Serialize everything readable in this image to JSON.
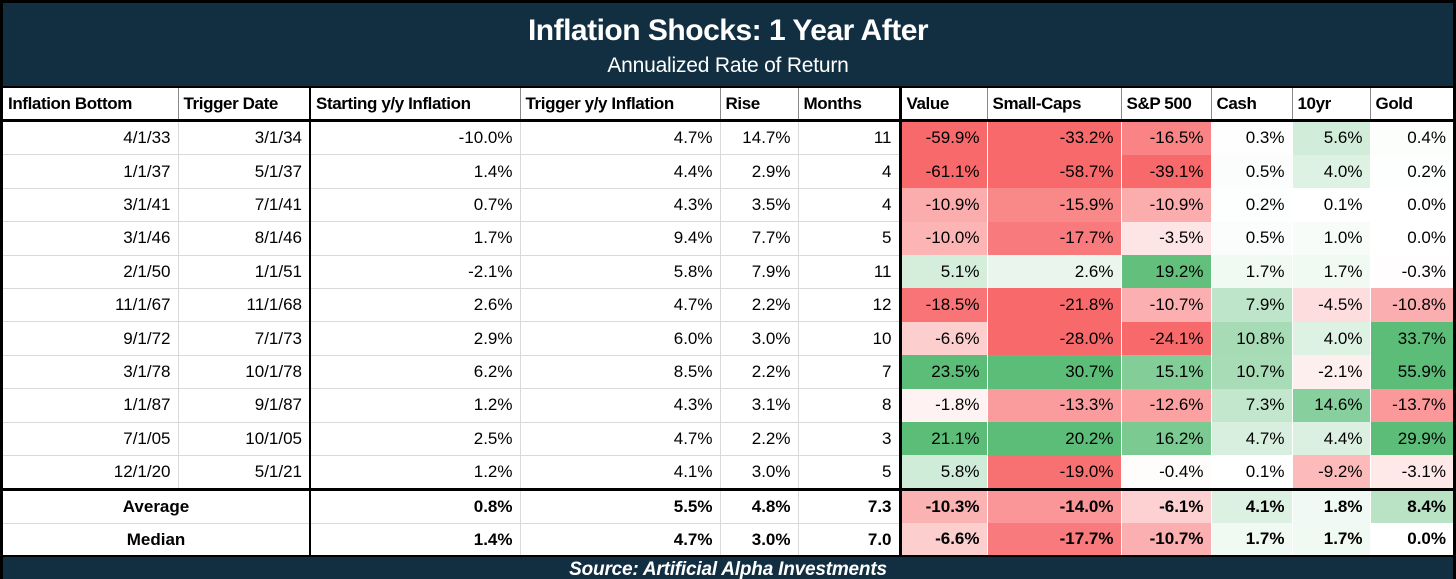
{
  "title": "Inflation Shocks: 1 Year After",
  "subtitle": "Annualized Rate of Return",
  "source_note": "Source: Artificial Alpha Investments",
  "colors": {
    "header_navy": "#112F41",
    "heat_negative_max": "#F8696B",
    "heat_positive_max": "#5BBD77",
    "heat_midpoint": "#FFFFFF",
    "heat_clamp_percent": 20,
    "grid_light": "#D9D9D9",
    "grid_dark": "#000000"
  },
  "chart_data": {
    "type": "table",
    "title": "Inflation Shocks: 1 Year After",
    "subtitle": "Annualized Rate of Return",
    "source": "Source: Artificial Alpha Investments",
    "columns": [
      "Inflation Bottom",
      "Trigger Date",
      "Starting y/y Inflation",
      "Trigger y/y Inflation",
      "Rise",
      "Months",
      "Value",
      "Small-Caps",
      "S&P 500",
      "Cash",
      "10yr",
      "Gold"
    ],
    "heatmap_columns": [
      "Value",
      "Small-Caps",
      "S&P 500",
      "Cash",
      "10yr",
      "Gold"
    ],
    "rows": [
      [
        "4/1/33",
        "3/1/34",
        "-10.0%",
        "4.7%",
        "14.7%",
        "11",
        "-59.9%",
        "-33.2%",
        "-16.5%",
        "0.3%",
        "5.6%",
        "0.4%"
      ],
      [
        "1/1/37",
        "5/1/37",
        "1.4%",
        "4.4%",
        "2.9%",
        "4",
        "-61.1%",
        "-58.7%",
        "-39.1%",
        "0.5%",
        "4.0%",
        "0.2%"
      ],
      [
        "3/1/41",
        "7/1/41",
        "0.7%",
        "4.3%",
        "3.5%",
        "4",
        "-10.9%",
        "-15.9%",
        "-10.9%",
        "0.2%",
        "0.1%",
        "0.0%"
      ],
      [
        "3/1/46",
        "8/1/46",
        "1.7%",
        "9.4%",
        "7.7%",
        "5",
        "-10.0%",
        "-17.7%",
        "-3.5%",
        "0.5%",
        "1.0%",
        "0.0%"
      ],
      [
        "2/1/50",
        "1/1/51",
        "-2.1%",
        "5.8%",
        "7.9%",
        "11",
        "5.1%",
        "2.6%",
        "19.2%",
        "1.7%",
        "1.7%",
        "-0.3%"
      ],
      [
        "11/1/67",
        "11/1/68",
        "2.6%",
        "4.7%",
        "2.2%",
        "12",
        "-18.5%",
        "-21.8%",
        "-10.7%",
        "7.9%",
        "-4.5%",
        "-10.8%"
      ],
      [
        "9/1/72",
        "7/1/73",
        "2.9%",
        "6.0%",
        "3.0%",
        "10",
        "-6.6%",
        "-28.0%",
        "-24.1%",
        "10.8%",
        "4.0%",
        "33.7%"
      ],
      [
        "3/1/78",
        "10/1/78",
        "6.2%",
        "8.5%",
        "2.2%",
        "7",
        "23.5%",
        "30.7%",
        "15.1%",
        "10.7%",
        "-2.1%",
        "55.9%"
      ],
      [
        "1/1/87",
        "9/1/87",
        "1.2%",
        "4.3%",
        "3.1%",
        "8",
        "-1.8%",
        "-13.3%",
        "-12.6%",
        "7.3%",
        "14.6%",
        "-13.7%"
      ],
      [
        "7/1/05",
        "10/1/05",
        "2.5%",
        "4.7%",
        "2.2%",
        "3",
        "21.1%",
        "20.2%",
        "16.2%",
        "4.7%",
        "4.4%",
        "29.9%"
      ],
      [
        "12/1/20",
        "5/1/21",
        "1.2%",
        "4.1%",
        "3.0%",
        "5",
        "5.8%",
        "-19.0%",
        "-0.4%",
        "0.1%",
        "-9.2%",
        "-3.1%"
      ]
    ],
    "summary_rows": [
      {
        "label": "Average",
        "values": [
          "0.8%",
          "5.5%",
          "4.8%",
          "7.3",
          "-10.3%",
          "-14.0%",
          "-6.1%",
          "4.1%",
          "1.8%",
          "8.4%"
        ]
      },
      {
        "label": "Median",
        "values": [
          "1.4%",
          "4.7%",
          "3.0%",
          "7.0",
          "-6.6%",
          "-17.7%",
          "-10.7%",
          "1.7%",
          "1.7%",
          "0.0%"
        ]
      }
    ]
  }
}
